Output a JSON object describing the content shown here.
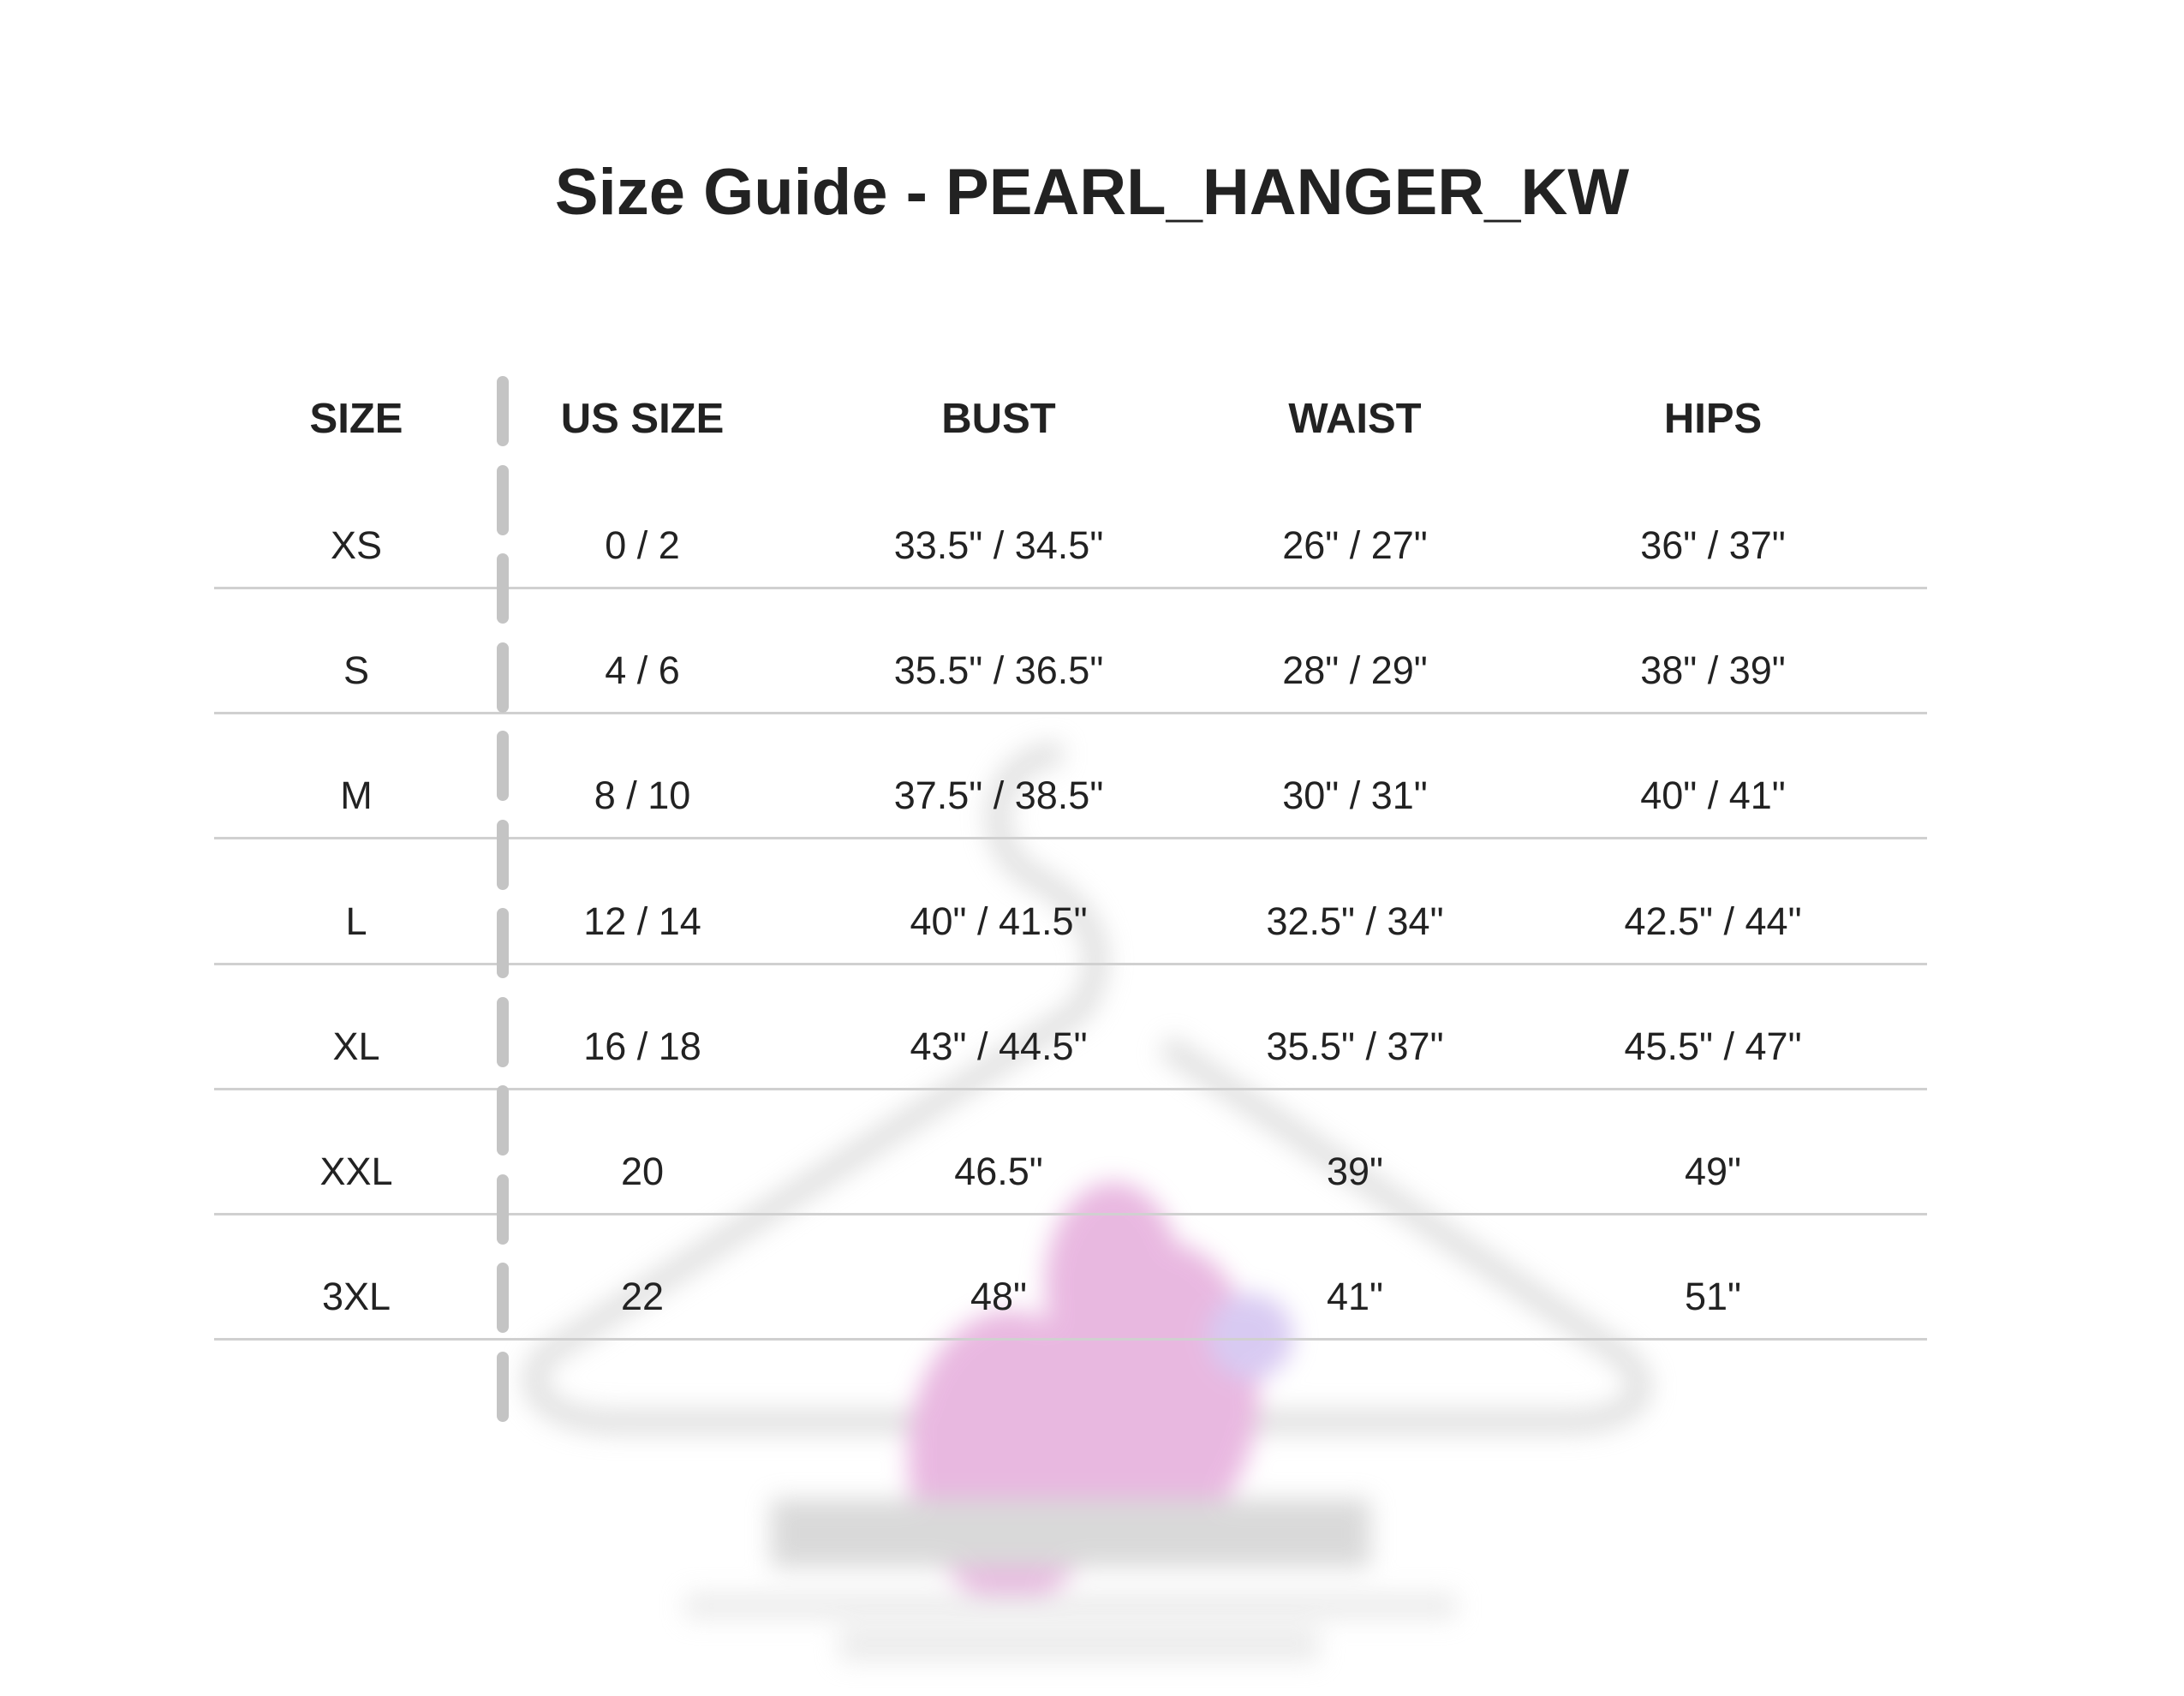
{
  "title": "Size Guide - PEARL_HANGER_KW",
  "table": {
    "headers": [
      "SIZE",
      "US SIZE",
      "BUST",
      "WAIST",
      "HIPS"
    ],
    "rows": [
      [
        "XS",
        "0 / 2",
        "33.5\" / 34.5\"",
        "26\" / 27\"",
        "36\" / 37\""
      ],
      [
        "S",
        "4 / 6",
        "35.5\" / 36.5\"",
        "28\" / 29\"",
        "38\" / 39\""
      ],
      [
        "M",
        "8 / 10",
        "37.5\" / 38.5\"",
        "30\" / 31\"",
        "40\" / 41\""
      ],
      [
        "L",
        "12 / 14",
        "40\" / 41.5\"",
        "32.5\" / 34\"",
        "42.5\" / 44\""
      ],
      [
        "XL",
        "16 / 18",
        "43\" / 44.5\"",
        "35.5\" / 37\"",
        "45.5\" / 47\""
      ],
      [
        "XXL",
        "20",
        "46.5\"",
        "39\"",
        "49\""
      ],
      [
        "3XL",
        "22",
        "48\"",
        "41\"",
        "51\""
      ]
    ]
  },
  "colors": {
    "text": "#222222",
    "rule": "#d0d0d0",
    "divider": "#c4c4c4",
    "watermark_accent": "#d77fc8"
  }
}
